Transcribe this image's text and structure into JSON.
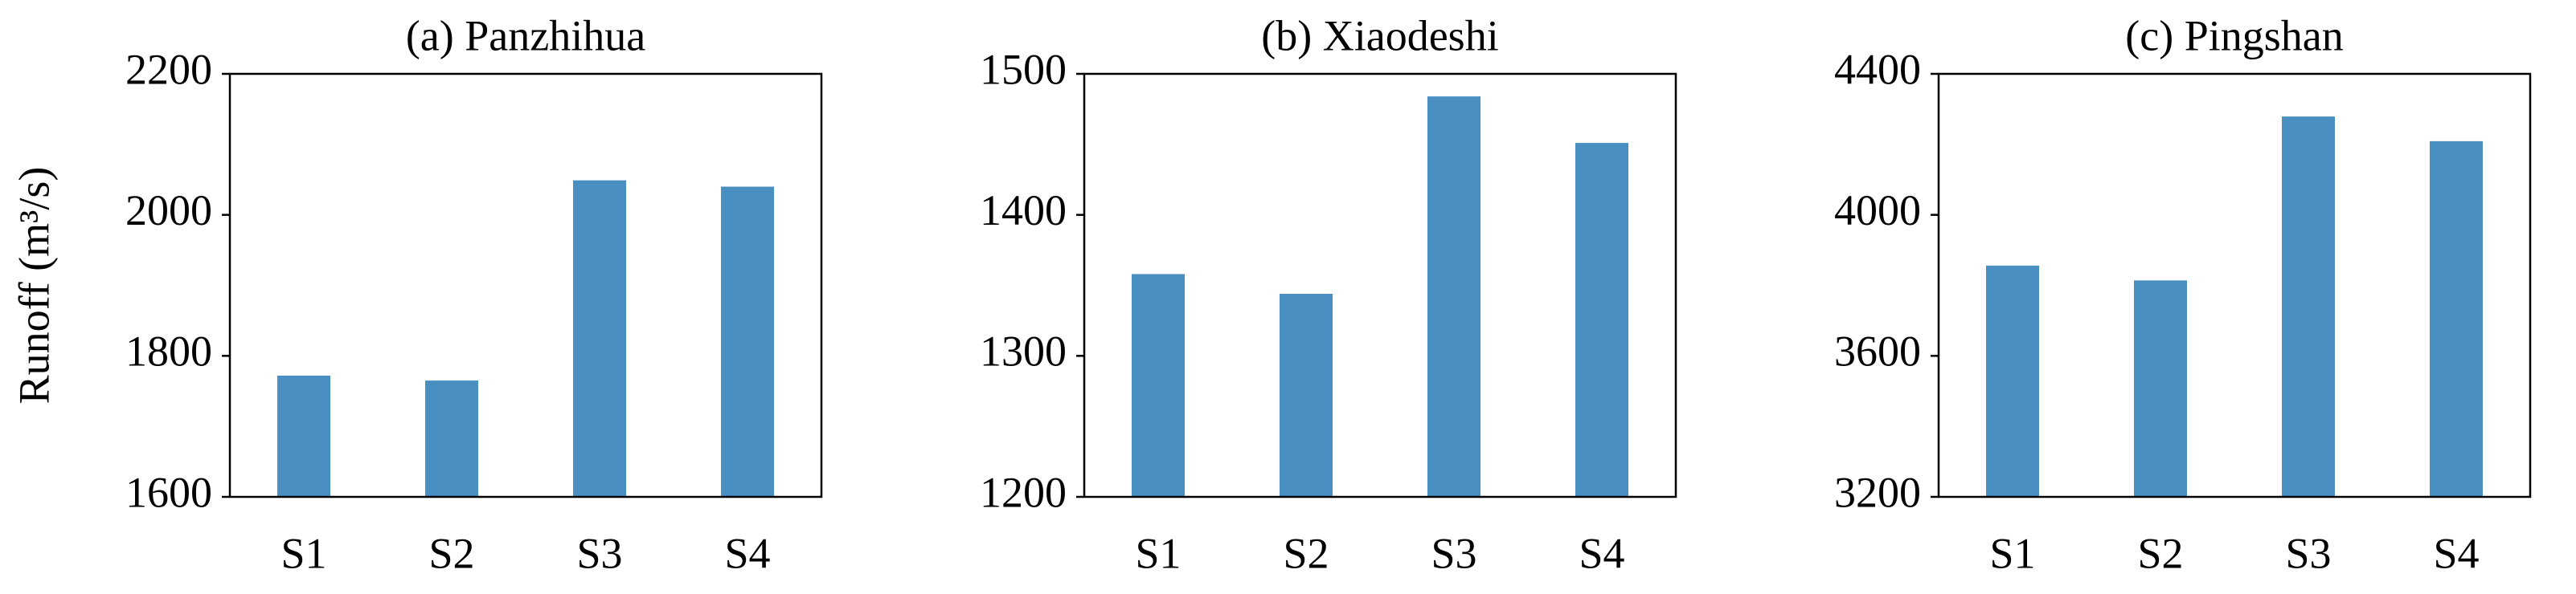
{
  "chart_data": [
    {
      "type": "bar",
      "title": "(a) Panzhihua",
      "ylabel": "Runoff (m³/s)",
      "categories": [
        "S1",
        "S2",
        "S3",
        "S4"
      ],
      "values": [
        1772,
        1765,
        2049,
        2040
      ],
      "color": "#4a8fc2",
      "ylim": [
        1600,
        2200
      ],
      "yticks": [
        1600,
        1800,
        2000,
        2200
      ]
    },
    {
      "type": "bar",
      "title": "(b) Xiaodeshi",
      "categories": [
        "S1",
        "S2",
        "S3",
        "S4"
      ],
      "values": [
        1358,
        1344,
        1484,
        1451
      ],
      "color": "#4a8fc2",
      "ylim": [
        1200,
        1500
      ],
      "yticks": [
        1200,
        1300,
        1400,
        1500
      ]
    },
    {
      "type": "bar",
      "title": "(c) Pingshan",
      "categories": [
        "S1",
        "S2",
        "S3",
        "S4"
      ],
      "values": [
        3856,
        3814,
        4279,
        4209
      ],
      "color": "#4a8fc2",
      "ylim": [
        3200,
        4400
      ],
      "yticks": [
        3200,
        3600,
        4000,
        4400
      ]
    }
  ]
}
